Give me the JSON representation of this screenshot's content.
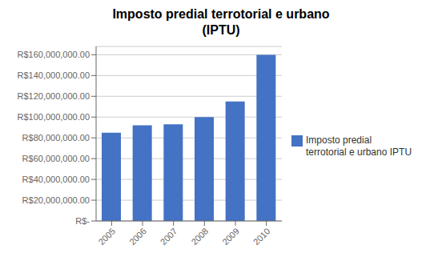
{
  "chart_data": {
    "type": "bar",
    "title": "Imposto predial terrotorial e urbano\n(IPTU)",
    "categories": [
      "2005",
      "2006",
      "2007",
      "2008",
      "2009",
      "2010"
    ],
    "series": [
      {
        "name": "Imposto predial\nterrotorial e urbano IPTU",
        "color": "#4472C4",
        "values": [
          85000000,
          92000000,
          93000000,
          100000000,
          115000000,
          160000000
        ]
      }
    ],
    "ylim": [
      0,
      168000000
    ],
    "yticks": [
      {
        "value": 0,
        "label": "R$-"
      },
      {
        "value": 20000000,
        "label": "R$20,000,000.00"
      },
      {
        "value": 40000000,
        "label": "R$40,000,000.00"
      },
      {
        "value": 60000000,
        "label": "R$60,000,000.00"
      },
      {
        "value": 80000000,
        "label": "R$80,000,000.00"
      },
      {
        "value": 100000000,
        "label": "R$100,000,000.00"
      },
      {
        "value": 120000000,
        "label": "R$120,000,000.00"
      },
      {
        "value": 140000000,
        "label": "R$140,000,000.00"
      },
      {
        "value": 160000000,
        "label": "R$160,000,000.00"
      }
    ],
    "grid": true,
    "legend": "right"
  }
}
